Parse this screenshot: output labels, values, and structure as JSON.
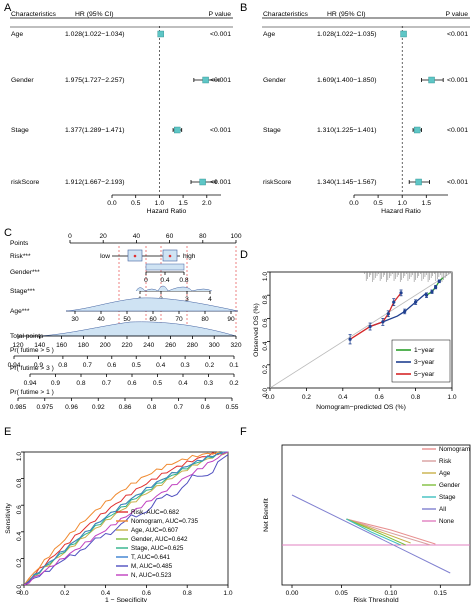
{
  "panels": [
    {
      "letter": "A"
    },
    {
      "letter": "B"
    },
    {
      "letter": "C"
    },
    {
      "letter": "D"
    },
    {
      "letter": "E"
    },
    {
      "letter": "F"
    }
  ],
  "forest_header": {
    "char": "Characteristics",
    "hr": "HR (95% CI)",
    "p": "P value"
  },
  "chart_data": [
    {
      "panel": "A",
      "type": "forest",
      "xlabel": "Hazard Ratio",
      "xticks": [
        "0.0",
        "0.5",
        "1.0",
        "1.5",
        "2.0"
      ],
      "xlim": [
        0,
        2.3
      ],
      "rows": [
        {
          "name": "Age",
          "hr_text": "1.028(1.022−1.034)",
          "p": "<0.001",
          "hr": 1.028,
          "lo": 1.022,
          "hi": 1.034
        },
        {
          "name": "Gender",
          "hr_text": "1.975(1.727−2.257)",
          "p": "<0.001",
          "hr": 1.975,
          "lo": 1.727,
          "hi": 2.257
        },
        {
          "name": "Stage",
          "hr_text": "1.377(1.289−1.471)",
          "p": "<0.001",
          "hr": 1.377,
          "lo": 1.289,
          "hi": 1.471
        },
        {
          "name": "riskScore",
          "hr_text": "1.912(1.667−2.193)",
          "p": "<0.001",
          "hr": 1.912,
          "lo": 1.667,
          "hi": 2.193
        }
      ]
    },
    {
      "panel": "B",
      "type": "forest",
      "xlabel": "Hazard Ratio",
      "xticks": [
        "0.0",
        "0.5",
        "1.0",
        "1.5"
      ],
      "xlim": [
        0,
        1.95
      ],
      "rows": [
        {
          "name": "Age",
          "hr_text": "1.028(1.022−1.035)",
          "p": "<0.001",
          "hr": 1.028,
          "lo": 1.022,
          "hi": 1.035
        },
        {
          "name": "Gender",
          "hr_text": "1.609(1.400−1.850)",
          "p": "<0.001",
          "hr": 1.609,
          "lo": 1.4,
          "hi": 1.85
        },
        {
          "name": "Stage",
          "hr_text": "1.310(1.225−1.401)",
          "p": "<0.001",
          "hr": 1.31,
          "lo": 1.225,
          "hi": 1.401
        },
        {
          "name": "riskScore",
          "hr_text": "1.340(1.145−1.567)",
          "p": "<0.001",
          "hr": 1.34,
          "lo": 1.145,
          "hi": 1.567
        }
      ]
    },
    {
      "panel": "C",
      "type": "nomogram",
      "points_label": "Points",
      "points_ticks": [
        "0",
        "20",
        "40",
        "60",
        "80",
        "100"
      ],
      "risk_label": "Risk***",
      "risk_low": "low",
      "risk_high": "high",
      "gender_label": "Gender***",
      "gender_ticks": [
        "0",
        "0.4",
        "0.8"
      ],
      "stage_label": "Stage***",
      "stage_ticks": [
        "1",
        "2",
        "3",
        "4"
      ],
      "age_label": "Age***",
      "age_ticks": [
        "30",
        "40",
        "50",
        "60",
        "70",
        "80",
        "90"
      ],
      "total_label": "Total points",
      "total_ticks": [
        "120",
        "140",
        "160",
        "180",
        "200",
        "220",
        "240",
        "260",
        "280",
        "300",
        "320"
      ],
      "f5_label": "Pr( futime > 5 )",
      "f5_ticks": [
        "0.94",
        "0.9",
        "0.8",
        "0.7",
        "0.6",
        "0.5",
        "0.4",
        "0.3",
        "0.2",
        "0.1"
      ],
      "f3_label": "Pr( futime > 3 )",
      "f3_ticks": [
        "0.94",
        "0.9",
        "0.8",
        "0.7",
        "0.6",
        "0.5",
        "0.4",
        "0.3",
        "0.2"
      ],
      "f1_label": "Pr( futime > 1 )",
      "f1_ticks": [
        "0.985",
        "0.975",
        "0.96",
        "0.92",
        "0.86",
        "0.8",
        "0.7",
        "0.6",
        "0.55"
      ]
    },
    {
      "panel": "D",
      "type": "line",
      "xlabel": "Nomogram−predicted OS (%)",
      "ylabel": "Observed OS (%)",
      "xticks": [
        "0.0",
        "0.2",
        "0.4",
        "0.6",
        "0.8",
        "1.0"
      ],
      "yticks": [
        "0.0",
        "0.2",
        "0.4",
        "0.6",
        "0.8",
        "1.0"
      ],
      "xlim": [
        0,
        1
      ],
      "ylim": [
        0,
        1
      ],
      "series": [
        {
          "name": "1−year",
          "color": "#2ca02c",
          "x": [
            0.86,
            0.89,
            0.91,
            0.93,
            0.95
          ],
          "y": [
            0.8,
            0.83,
            0.87,
            0.92,
            0.95
          ]
        },
        {
          "name": "3−year",
          "color": "#1f3f8f",
          "x": [
            0.55,
            0.62,
            0.7,
            0.74,
            0.8,
            0.86
          ],
          "y": [
            0.53,
            0.57,
            0.62,
            0.66,
            0.74,
            0.82
          ]
        },
        {
          "name": "5−year",
          "color": "#d62728",
          "x": [
            0.44,
            0.55,
            0.62,
            0.65,
            0.68,
            0.72
          ],
          "y": [
            0.42,
            0.53,
            0.57,
            0.64,
            0.74,
            0.82
          ]
        }
      ],
      "points": [
        {
          "x": 0.44,
          "y": 0.42,
          "e": 0.04
        },
        {
          "x": 0.55,
          "y": 0.53,
          "e": 0.03
        },
        {
          "x": 0.62,
          "y": 0.57,
          "e": 0.03
        },
        {
          "x": 0.65,
          "y": 0.64,
          "e": 0.025
        },
        {
          "x": 0.68,
          "y": 0.74,
          "e": 0.03
        },
        {
          "x": 0.72,
          "y": 0.82,
          "e": 0.025
        },
        {
          "x": 0.74,
          "y": 0.66,
          "e": 0.02
        },
        {
          "x": 0.8,
          "y": 0.74,
          "e": 0.02
        },
        {
          "x": 0.86,
          "y": 0.8,
          "e": 0.02
        },
        {
          "x": 0.89,
          "y": 0.83,
          "e": 0.015
        },
        {
          "x": 0.91,
          "y": 0.87,
          "e": 0.015
        },
        {
          "x": 0.93,
          "y": 0.92,
          "e": 0.012
        }
      ]
    },
    {
      "panel": "E",
      "type": "line",
      "xlabel": "1 − Specificity",
      "ylabel": "Sensitivity",
      "xticks": [
        "0.0",
        "0.2",
        "0.4",
        "0.6",
        "0.8",
        "1.0"
      ],
      "yticks": [
        "0.0",
        "0.2",
        "0.4",
        "0.6",
        "0.8",
        "1.0"
      ],
      "xlim": [
        0,
        1
      ],
      "ylim": [
        0,
        1
      ],
      "series": [
        {
          "name": "Risk, AUC=0.682",
          "color": "#e03030",
          "auc": 0.682
        },
        {
          "name": "Nomogram, AUC=0.735",
          "color": "#f08a30",
          "auc": 0.735
        },
        {
          "name": "Age, AUC=0.607",
          "color": "#c9b04a",
          "auc": 0.607
        },
        {
          "name": "Gender, AUC=0.642",
          "color": "#7fbf3f",
          "auc": 0.642
        },
        {
          "name": "Stage, AUC=0.625",
          "color": "#2fb28a",
          "auc": 0.625
        },
        {
          "name": "T, AUC=0.641",
          "color": "#3a7fd0",
          "auc": 0.641
        },
        {
          "name": "M, AUC=0.485",
          "color": "#5050c0",
          "auc": 0.485
        },
        {
          "name": "N, AUC=0.523",
          "color": "#c040c0",
          "auc": 0.523
        }
      ]
    },
    {
      "panel": "F",
      "type": "line",
      "xlabel": "Risk Threshold",
      "ylabel": "Net Benefit",
      "xticks": [
        "0.00",
        "0.05",
        "0.10",
        "0.15"
      ],
      "series": [
        {
          "name": "Nomogram",
          "color": "#e89090"
        },
        {
          "name": "Risk",
          "color": "#d9a0a0"
        },
        {
          "name": "Age",
          "color": "#c9b04a"
        },
        {
          "name": "Gender",
          "color": "#7fbf3f"
        },
        {
          "name": "Stage",
          "color": "#40c0c0"
        },
        {
          "name": "All",
          "color": "#8080d0"
        },
        {
          "name": "None",
          "color": "#e080c0"
        }
      ]
    }
  ]
}
